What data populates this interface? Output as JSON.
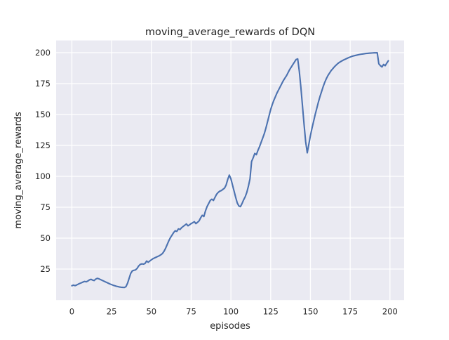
{
  "chart_data": {
    "type": "line",
    "title": "moving_average_rewards of DQN",
    "xlabel": "episodes",
    "ylabel": "moving_average_rewards",
    "grid": true,
    "legend": false,
    "xticks": [
      0,
      25,
      50,
      75,
      100,
      125,
      150,
      175,
      200
    ],
    "yticks": [
      25,
      50,
      75,
      100,
      125,
      150,
      175,
      200
    ],
    "xlim": [
      -9.9,
      208.9
    ],
    "ylim": [
      -0.1,
      209.9
    ],
    "style": {
      "fig_bg": "#ffffff",
      "axes_bg": "#EAEAF2",
      "grid_color": "#ffffff",
      "line_color": "#4C72B0",
      "text_color": "#262626"
    },
    "series": [
      {
        "name": "DQN",
        "color": "#4C72B0",
        "x0": 0,
        "dx": 1,
        "y": [
          11.5,
          12.0,
          11.6,
          12.1,
          12.8,
          13.4,
          13.9,
          14.5,
          15.0,
          14.7,
          15.3,
          16.2,
          16.7,
          16.1,
          15.7,
          16.9,
          17.5,
          17.1,
          16.5,
          15.9,
          15.3,
          14.7,
          14.1,
          13.5,
          12.9,
          12.4,
          11.9,
          11.5,
          11.1,
          10.8,
          10.5,
          10.3,
          10.2,
          10.1,
          10.8,
          13.5,
          17.5,
          21.5,
          23.5,
          24.0,
          24.3,
          25.5,
          27.5,
          28.8,
          29.2,
          29.0,
          29.5,
          31.5,
          30.5,
          31.5,
          32.5,
          33.4,
          34.0,
          34.6,
          35.2,
          35.8,
          36.6,
          37.6,
          39.5,
          42.0,
          45.0,
          48.0,
          50.5,
          52.5,
          54.5,
          56.0,
          55.5,
          57.5,
          57.0,
          58.5,
          59.5,
          60.5,
          61.5,
          60.0,
          60.8,
          61.8,
          62.5,
          63.3,
          61.8,
          62.8,
          64.0,
          66.5,
          68.5,
          67.5,
          72.0,
          75.5,
          78.0,
          80.5,
          81.5,
          80.5,
          83.0,
          85.5,
          87.0,
          88.0,
          88.5,
          89.5,
          90.5,
          93.0,
          97.5,
          101.0,
          98.0,
          93.0,
          88.0,
          83.0,
          78.5,
          76.0,
          75.5,
          78.0,
          81.0,
          83.5,
          87.0,
          92.0,
          98.0,
          112.0,
          115.0,
          118.5,
          117.5,
          121.0,
          124.0,
          127.5,
          131.0,
          134.5,
          139.0,
          144.0,
          149.0,
          154.0,
          158.0,
          161.5,
          164.5,
          167.5,
          170.0,
          172.5,
          175.0,
          177.5,
          179.5,
          181.5,
          184.0,
          186.5,
          188.5,
          190.5,
          192.5,
          194.5,
          195.0,
          185.0,
          172.0,
          157.0,
          142.0,
          128.0,
          119.0,
          126.0,
          133.0,
          139.0,
          144.5,
          150.0,
          155.0,
          160.0,
          164.5,
          168.5,
          172.5,
          176.0,
          179.0,
          181.5,
          183.5,
          185.5,
          187.0,
          188.5,
          189.8,
          191.0,
          192.0,
          192.8,
          193.5,
          194.2,
          194.8,
          195.4,
          196.0,
          196.5,
          197.0,
          197.4,
          197.7,
          198.0,
          198.3,
          198.6,
          198.8,
          199.0,
          199.2,
          199.4,
          199.5,
          199.6,
          199.7,
          199.8,
          199.9,
          199.9,
          200.0,
          191.0,
          189.5,
          188.5,
          190.5,
          189.5,
          191.5,
          193.5
        ]
      }
    ]
  }
}
